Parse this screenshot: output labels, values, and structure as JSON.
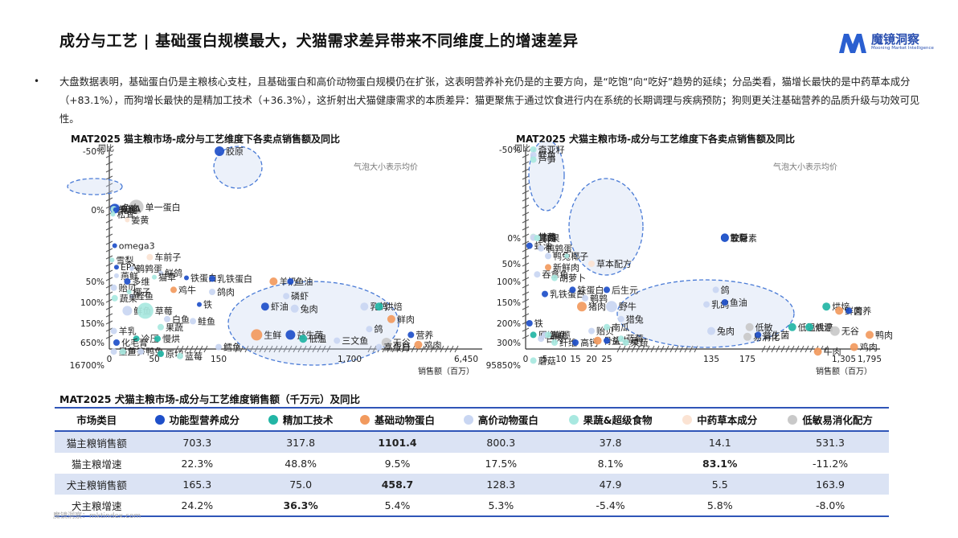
{
  "header": {
    "title": "成分与工艺 | 基础蛋白规模最大，犬猫需求差异带来不同维度上的增速差异",
    "logo_name": "魔镜洞察",
    "logo_sub": "Mooning Market Intelligence"
  },
  "summary": {
    "bullet": "•",
    "text": "大盘数据表明，基础蛋白仍是主粮核心支柱，且基础蛋白和高价动物蛋白规模仍在扩张，这表明营养补充仍是的主要方向，是“吃饱”向“吃好”趋势的延续；分品类看，猫增长最快的是中药草本成分（+83.1%），而狗增长最快的是精加工技术（+36.3%），这折射出犬猫健康需求的本质差异：猫更聚焦于通过饮食进行内在系统的长期调理与疾病预防；狗则更关注基础营养的品质升级与功效可见性。"
  },
  "colors": {
    "功能型营养成分": "#1e4fc9",
    "精加工技术": "#22b5a5",
    "基础动物蛋白": "#f29a5e",
    "高价动物蛋白": "#c9d6f2",
    "果蔬&超级食物": "#a8e8e0",
    "中药草本成分": "#fbe3d3",
    "低敏易消化配方": "#c9c9c9"
  },
  "chart_data": [
    {
      "type": "scatter",
      "title": "MAT2025 猫主粮市场-成分与工艺维度下各卖点销售额及同比",
      "ylabel": "同比",
      "xlabel": "销售额（百万）",
      "note": "气泡大小表示均价",
      "y_ticks": [
        "16700%",
        "650%",
        "150%",
        "100%",
        "50%",
        "0%",
        "-50%"
      ],
      "x_ticks": [
        "0",
        "50",
        "150",
        "1,700",
        "6,450"
      ],
      "points": [
        {
          "label": "单一蛋白",
          "x": 30,
          "y": 1450,
          "group": "低敏易消化配方",
          "size": 9
        },
        {
          "label": "胶原",
          "x": 160,
          "y": 16700,
          "group": "功能型营养成分",
          "size": 6
        },
        {
          "label": "兔血",
          "x": 8,
          "y": 1200,
          "group": "高价动物蛋白",
          "size": 5
        },
        {
          "label": "DHA",
          "x": 6,
          "y": 1000,
          "group": "功能型营养成分",
          "size": 6
        },
        {
          "label": "蜂蜜",
          "x": 5,
          "y": 850,
          "group": "果蔬&超级食物",
          "size": 4
        },
        {
          "label": "乳化",
          "x": 7,
          "y": 700,
          "group": "功能型营养成分",
          "size": 3
        },
        {
          "label": "松茸",
          "x": 4,
          "y": 620,
          "group": "果蔬&超级食物",
          "size": 3
        },
        {
          "label": "姜黄",
          "x": 20,
          "y": 580,
          "group": "中药草本成分",
          "size": 3
        },
        {
          "label": "omega3",
          "x": 6,
          "y": 400,
          "group": "功能型营养成分",
          "size": 3
        },
        {
          "label": "车前子",
          "x": 45,
          "y": 320,
          "group": "中药草本成分",
          "size": 4
        },
        {
          "label": "雪梨",
          "x": 3,
          "y": 300,
          "group": "果蔬&超级食物",
          "size": 3
        },
        {
          "label": "EPA",
          "x": 8,
          "y": 250,
          "group": "功能型营养成分",
          "size": 3
        },
        {
          "label": "鹌鹑蛋",
          "x": 25,
          "y": 240,
          "group": "高价动物蛋白",
          "size": 3
        },
        {
          "label": "鲜鸽",
          "x": 60,
          "y": 210,
          "group": "高价动物蛋白",
          "size": 3
        },
        {
          "label": "燕鲜",
          "x": 8,
          "y": 190,
          "group": "高价动物蛋白",
          "size": 3
        },
        {
          "label": "猫草",
          "x": 50,
          "y": 180,
          "group": "果蔬&超级食物",
          "size": 3
        },
        {
          "label": "铁蛋白",
          "x": 100,
          "y": 175,
          "group": "功能型营养成分",
          "size": 3
        },
        {
          "label": "乳铁蛋白",
          "x": 140,
          "y": 170,
          "group": "功能型营养成分",
          "size": 4
        },
        {
          "label": "多维",
          "x": 20,
          "y": 150,
          "group": "功能型营养成分",
          "size": 4
        },
        {
          "label": "贻贝",
          "x": 5,
          "y": 135,
          "group": "高价动物蛋白",
          "size": 4
        },
        {
          "label": "鸡牛",
          "x": 80,
          "y": 130,
          "group": "基础动物蛋白",
          "size": 4
        },
        {
          "label": "鸽肉",
          "x": 140,
          "y": 125,
          "group": "高价动物蛋白",
          "size": 4
        },
        {
          "label": "椰子",
          "x": 22,
          "y": 125,
          "group": "果蔬&超级食物",
          "size": 3
        },
        {
          "label": "鲣鱼",
          "x": 25,
          "y": 115,
          "group": "高价动物蛋白",
          "size": 3
        },
        {
          "label": "蔬果",
          "x": 6,
          "y": 110,
          "group": "果蔬&超级食物",
          "size": 4
        },
        {
          "label": "铁",
          "x": 120,
          "y": 95,
          "group": "功能型营养成分",
          "size": 3
        },
        {
          "label": "羊奶",
          "x": 800,
          "y": 150,
          "group": "基础动物蛋白",
          "size": 5
        },
        {
          "label": "鱼油",
          "x": 1000,
          "y": 150,
          "group": "功能型营养成分",
          "size": 4
        },
        {
          "label": "磷虾",
          "x": 950,
          "y": 115,
          "group": "高价动物蛋白",
          "size": 4
        },
        {
          "label": "虾油",
          "x": 700,
          "y": 90,
          "group": "功能型营养成分",
          "size": 5
        },
        {
          "label": "兔肉",
          "x": 1050,
          "y": 85,
          "group": "高价动物蛋白",
          "size": 5
        },
        {
          "label": "乳鸽",
          "x": 2300,
          "y": 90,
          "group": "高价动物蛋白",
          "size": 5
        },
        {
          "label": "烘焙",
          "x": 2900,
          "y": 90,
          "group": "精加工技术",
          "size": 5
        },
        {
          "label": "鲜肉",
          "x": 3400,
          "y": 60,
          "group": "基础动物蛋白",
          "size": 5
        },
        {
          "label": "鲜鱼",
          "x": 20,
          "y": 80,
          "group": "高价动物蛋白",
          "size": 6
        },
        {
          "label": "草莓",
          "x": 40,
          "y": 80,
          "group": "果蔬&超级食物",
          "size": 10
        },
        {
          "label": "白鱼",
          "x": 70,
          "y": 60,
          "group": "高价动物蛋白",
          "size": 4
        },
        {
          "label": "鲑鱼",
          "x": 110,
          "y": 55,
          "group": "高价动物蛋白",
          "size": 4
        },
        {
          "label": "果蔬",
          "x": 60,
          "y": 40,
          "group": "果蔬&超级食物",
          "size": 4
        },
        {
          "label": "羊乳",
          "x": 5,
          "y": 30,
          "group": "高价动物蛋白",
          "size": 4
        },
        {
          "label": "冷压",
          "x": 30,
          "y": 10,
          "group": "精加工技术",
          "size": 4
        },
        {
          "label": "慢烘",
          "x": 55,
          "y": 10,
          "group": "精加工技术",
          "size": 4
        },
        {
          "label": "化毛膏",
          "x": 8,
          "y": 0,
          "group": "功能型营养成分",
          "size": 4
        },
        {
          "label": "鸽",
          "x": 2500,
          "y": 35,
          "group": "高价动物蛋白",
          "size": 4
        },
        {
          "label": "生鲜",
          "x": 600,
          "y": 20,
          "group": "基础动物蛋白",
          "size": 7
        },
        {
          "label": "益生菌",
          "x": 1000,
          "y": 20,
          "group": "功能型营养成分",
          "size": 6
        },
        {
          "label": "低温",
          "x": 1150,
          "y": 10,
          "group": "精加工技术",
          "size": 5
        },
        {
          "label": "三文鱼",
          "x": 1550,
          "y": 5,
          "group": "高价动物蛋白",
          "size": 4
        },
        {
          "label": "营养",
          "x": 4200,
          "y": 20,
          "group": "功能型营养成分",
          "size": 4
        },
        {
          "label": "无谷",
          "x": 3200,
          "y": 0,
          "group": "低敏易消化配方",
          "size": 6
        },
        {
          "label": "鸡肉",
          "x": 4500,
          "y": -5,
          "group": "基础动物蛋白",
          "size": 5
        },
        {
          "label": "高蛋白",
          "x": 2900,
          "y": -10,
          "group": "高价动物蛋白",
          "size": 4
        },
        {
          "label": "墨鱼",
          "x": 5,
          "y": -20,
          "group": "高价动物蛋白",
          "size": 4
        },
        {
          "label": "芦笋",
          "x": 15,
          "y": -20,
          "group": "果蔬&超级食物",
          "size": 4
        },
        {
          "label": "鸭兔",
          "x": 35,
          "y": -20,
          "group": "高价动物蛋白",
          "size": 4
        },
        {
          "label": "原切",
          "x": 60,
          "y": -25,
          "group": "精加工技术",
          "size": 4
        },
        {
          "label": "蓝莓",
          "x": 90,
          "y": -30,
          "group": "果蔬&超级食物",
          "size": 4
        },
        {
          "label": "鳕鱼",
          "x": 150,
          "y": -10,
          "group": "高价动物蛋白",
          "size": 4
        }
      ]
    },
    {
      "type": "scatter",
      "title": "MAT2025 犬猫主粮市场-成分与工艺维度下各卖点销售额及同比",
      "ylabel": "同比",
      "xlabel": "销售额（百万）",
      "note": "气泡大小表示均价",
      "y_ticks": [
        "95850%",
        "300%",
        "200%",
        "150%",
        "100%",
        "50%",
        "0%",
        "-50%"
      ],
      "x_ticks": [
        "0",
        "5",
        "10",
        "15",
        "20",
        "25",
        "135",
        "175",
        "1,305",
        "1,795"
      ],
      "points": [
        {
          "label": "奇亚籽",
          "x": 2,
          "y": 95850,
          "group": "果蔬&超级食物",
          "size": 4
        },
        {
          "label": "鲣鱼",
          "x": 2,
          "y": 90000,
          "group": "高价动物蛋白",
          "size": 4
        },
        {
          "label": "芦笋",
          "x": 2,
          "y": 85000,
          "group": "果蔬&超级食物",
          "size": 4
        },
        {
          "label": "甘蓝",
          "x": 2,
          "y": 1500,
          "group": "果蔬&超级食物",
          "size": 4
        },
        {
          "label": "党参",
          "x": 2,
          "y": 1000,
          "group": "中药草本成分",
          "size": 4
        },
        {
          "label": "鸽肉",
          "x": 2,
          "y": 700,
          "group": "高价动物蛋白",
          "size": 4
        },
        {
          "label": "胶原",
          "x": 150,
          "y": 950,
          "group": "功能型营养成分",
          "size": 5
        },
        {
          "label": "雪梨",
          "x": 150,
          "y": 600,
          "group": "果蔬&超级食物",
          "size": 4
        },
        {
          "label": "软骨素",
          "x": 150,
          "y": 320,
          "group": "功能型营养成分",
          "size": 5
        },
        {
          "label": "鲜果",
          "x": 3,
          "y": 320,
          "group": "果蔬&超级食物",
          "size": 4
        },
        {
          "label": "虾油",
          "x": 1,
          "y": 270,
          "group": "功能型营养成分",
          "size": 4
        },
        {
          "label": "鹌鹑蛋",
          "x": 4,
          "y": 260,
          "group": "高价动物蛋白",
          "size": 4
        },
        {
          "label": "鸭兔",
          "x": 6,
          "y": 230,
          "group": "高价动物蛋白",
          "size": 4
        },
        {
          "label": "椰子",
          "x": 12,
          "y": 230,
          "group": "果蔬&超级食物",
          "size": 3
        },
        {
          "label": "草本配方",
          "x": 20,
          "y": 200,
          "group": "中药草本成分",
          "size": 4
        },
        {
          "label": "新鲜肉",
          "x": 6,
          "y": 190,
          "group": "基础动物蛋白",
          "size": 4
        },
        {
          "label": "吞拿鱼",
          "x": 3,
          "y": 170,
          "group": "高价动物蛋白",
          "size": 4
        },
        {
          "label": "胡萝卜",
          "x": 8,
          "y": 160,
          "group": "果蔬&超级食物",
          "size": 4
        },
        {
          "label": "乳铁蛋白",
          "x": 5,
          "y": 120,
          "group": "功能型营养成分",
          "size": 4
        },
        {
          "label": "铁蛋白",
          "x": 14,
          "y": 130,
          "group": "功能型营养成分",
          "size": 4
        },
        {
          "label": "后生元",
          "x": 25,
          "y": 130,
          "group": "功能型营养成分",
          "size": 4
        },
        {
          "label": "鹌鹑",
          "x": 18,
          "y": 110,
          "group": "高价动物蛋白",
          "size": 4
        },
        {
          "label": "猪肉",
          "x": 17,
          "y": 90,
          "group": "基础动物蛋白",
          "size": 6
        },
        {
          "label": "野牛",
          "x": 30,
          "y": 90,
          "group": "高价动物蛋白",
          "size": 7
        },
        {
          "label": "鸽",
          "x": 140,
          "y": 130,
          "group": "高价动物蛋白",
          "size": 4
        },
        {
          "label": "乳鸽",
          "x": 130,
          "y": 95,
          "group": "高价动物蛋白",
          "size": 4
        },
        {
          "label": "鱼油",
          "x": 150,
          "y": 100,
          "group": "功能型营养成分",
          "size": 4
        },
        {
          "label": "烘焙",
          "x": 1100,
          "y": 90,
          "group": "精加工技术",
          "size": 5
        },
        {
          "label": "鲜肉",
          "x": 1250,
          "y": 80,
          "group": "基础动物蛋白",
          "size": 5
        },
        {
          "label": "营养",
          "x": 1400,
          "y": 80,
          "group": "功能型营养成分",
          "size": 4
        },
        {
          "label": "鸭肉",
          "x": 1795,
          "y": 20,
          "group": "基础动物蛋白",
          "size": 5
        },
        {
          "label": "猎兔",
          "x": 40,
          "y": 60,
          "group": "高价动物蛋白",
          "size": 4
        },
        {
          "label": "铁",
          "x": 1,
          "y": 50,
          "group": "功能型营养成分",
          "size": 4
        },
        {
          "label": "贻贝",
          "x": 20,
          "y": 30,
          "group": "高价动物蛋白",
          "size": 4
        },
        {
          "label": "南瓜",
          "x": 25,
          "y": 40,
          "group": "果蔬&超级食物",
          "size": 4
        },
        {
          "label": "兔肉",
          "x": 135,
          "y": 30,
          "group": "高价动物蛋白",
          "size": 5
        },
        {
          "label": "易消化",
          "x": 175,
          "y": 15,
          "group": "低敏易消化配方",
          "size": 5
        },
        {
          "label": "低敏",
          "x": 200,
          "y": 40,
          "group": "低敏易消化配方",
          "size": 5
        },
        {
          "label": "低温烘焙",
          "x": 700,
          "y": 40,
          "group": "精加工技术",
          "size": 5
        },
        {
          "label": "低温",
          "x": 900,
          "y": 40,
          "group": "精加工技术",
          "size": 5
        },
        {
          "label": "益生菌",
          "x": 300,
          "y": 20,
          "group": "功能型营养成分",
          "size": 4
        },
        {
          "label": "无谷",
          "x": 1200,
          "y": 30,
          "group": "低敏易消化配方",
          "size": 6
        },
        {
          "label": "原切",
          "x": 2,
          "y": 20,
          "group": "精加工技术",
          "size": 4
        },
        {
          "label": "鲜鱼",
          "x": 5,
          "y": 20,
          "group": "高价动物蛋白",
          "size": 4
        },
        {
          "label": "白肉",
          "x": 4,
          "y": 10,
          "group": "高价动物蛋白",
          "size": 4
        },
        {
          "label": "橄榄",
          "x": 6,
          "y": 20,
          "group": "果蔬&超级食物",
          "size": 4
        },
        {
          "label": "纤维",
          "x": 8,
          "y": 0,
          "group": "果蔬&超级食物",
          "size": 4
        },
        {
          "label": "高钙",
          "x": 15,
          "y": 0,
          "group": "功能型营养成分",
          "size": 4
        },
        {
          "label": "骨头",
          "x": 22,
          "y": 5,
          "group": "基础动物蛋白",
          "size": 5
        },
        {
          "label": "益生元",
          "x": 25,
          "y": 5,
          "group": "功能型营养成分",
          "size": 4
        },
        {
          "label": "蓝莓",
          "x": 40,
          "y": 10,
          "group": "果蔬&超级食物",
          "size": 4
        },
        {
          "label": "果蔬",
          "x": 45,
          "y": 0,
          "group": "果蔬&超级食物",
          "size": 4
        },
        {
          "label": "牛肉",
          "x": 1000,
          "y": -20,
          "group": "基础动物蛋白",
          "size": 5
        },
        {
          "label": "鸡肉",
          "x": 1500,
          "y": -10,
          "group": "基础动物蛋白",
          "size": 5
        },
        {
          "label": "蘑菇",
          "x": 2,
          "y": -40,
          "group": "果蔬&超级食物",
          "size": 4
        }
      ]
    }
  ],
  "table": {
    "title": "MAT2025 犬猫主粮市场-成分与工艺维度销售额（千万元）及同比",
    "corner": "市场类目",
    "columns": [
      "功能型营养成分",
      "精加工技术",
      "基础动物蛋白",
      "高价动物蛋白",
      "果蔬&超级食物",
      "中药草本成分",
      "低敏易消化配方"
    ],
    "rows": [
      {
        "label": "猫主粮销售额",
        "values": [
          "703.3",
          "317.8",
          "1101.4",
          "800.3",
          "37.8",
          "14.1",
          "531.3"
        ],
        "highlight": [
          2
        ]
      },
      {
        "label": "猫主粮增速",
        "values": [
          "22.3%",
          "48.8%",
          "9.5%",
          "17.5%",
          "8.1%",
          "83.1%",
          "-11.2%"
        ],
        "highlight": [
          5
        ]
      },
      {
        "label": "犬主粮销售额",
        "values": [
          "165.3",
          "75.0",
          "458.7",
          "128.3",
          "47.9",
          "5.5",
          "163.9"
        ],
        "highlight": [
          2
        ]
      },
      {
        "label": "犬主粮增速",
        "values": [
          "24.2%",
          "36.3%",
          "5.4%",
          "5.3%",
          "-5.4%",
          "5.8%",
          "-8.0%"
        ],
        "highlight": [
          1
        ]
      }
    ]
  },
  "footer": "魔镜洞察：mktindex.com"
}
